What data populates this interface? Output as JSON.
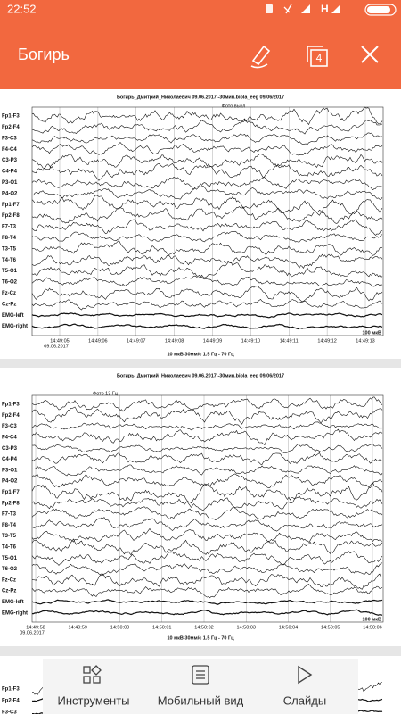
{
  "status_bar": {
    "time": "22:52",
    "network": "H"
  },
  "app_bar": {
    "title": "Богирь",
    "page_count": "4"
  },
  "pages": [
    {
      "title": "Богирь_Дмитрий_Николаевич 09.06.2017 -30мин.biola_eeg  09/06/2017",
      "note": "Фото выкл",
      "channels": [
        "Fp1-F3",
        "Fp2-F4",
        "F3-C3",
        "F4-C4",
        "C3-P3",
        "C4-P4",
        "P3-O1",
        "P4-O2",
        "Fp1-F7",
        "Fp2-F8",
        "F7-T3",
        "F8-T4",
        "T3-T5",
        "T4-T6",
        "T5-O1",
        "T6-O2",
        "Fz-Cz",
        "Cz-Pz",
        "EMG-left",
        "EMG-right"
      ],
      "times": [
        "14:49:05",
        "14:49:06",
        "14:49:07",
        "14:49:08",
        "14:49:09",
        "14:49:10",
        "14:49:11",
        "14:49:12",
        "14:49:13"
      ],
      "date": "09.06.2017",
      "footer": "10 мкВ  30мм/с  1.5 Гц - 70 Гц",
      "scale": "100 мкВ"
    },
    {
      "title": "Богирь_Дмитрий_Николаевич 09.06.2017 -30мин.biola_eeg  09/06/2017",
      "note": "Фото 13 Гц",
      "channels": [
        "Fp1-F3",
        "Fp2-F4",
        "F3-C3",
        "F4-C4",
        "C3-P3",
        "C4-P4",
        "P3-O1",
        "P4-O2",
        "Fp1-F7",
        "Fp2-F8",
        "F7-T3",
        "F8-T4",
        "T3-T5",
        "T4-T6",
        "T5-O1",
        "T6-O2",
        "Fz-Cz",
        "Cz-Pz",
        "EMG-left",
        "EMG-right"
      ],
      "times": [
        "14:49:58",
        "14:49:59",
        "14:50:00",
        "14:50:01",
        "14:50:02",
        "14:50:03",
        "14:50:04",
        "14:50:05",
        "14:50:06"
      ],
      "date": "09.06.2017",
      "footer": "10 мкВ  30мм/с  1.5 Гц - 70 Гц",
      "scale": "100 мкВ"
    },
    {
      "channels": [
        "Fp1-F3",
        "Fp2-F4",
        "F3-C3"
      ]
    }
  ],
  "toolbar": {
    "items": [
      "Инструменты",
      "Мобильный вид",
      "Слайды"
    ]
  }
}
